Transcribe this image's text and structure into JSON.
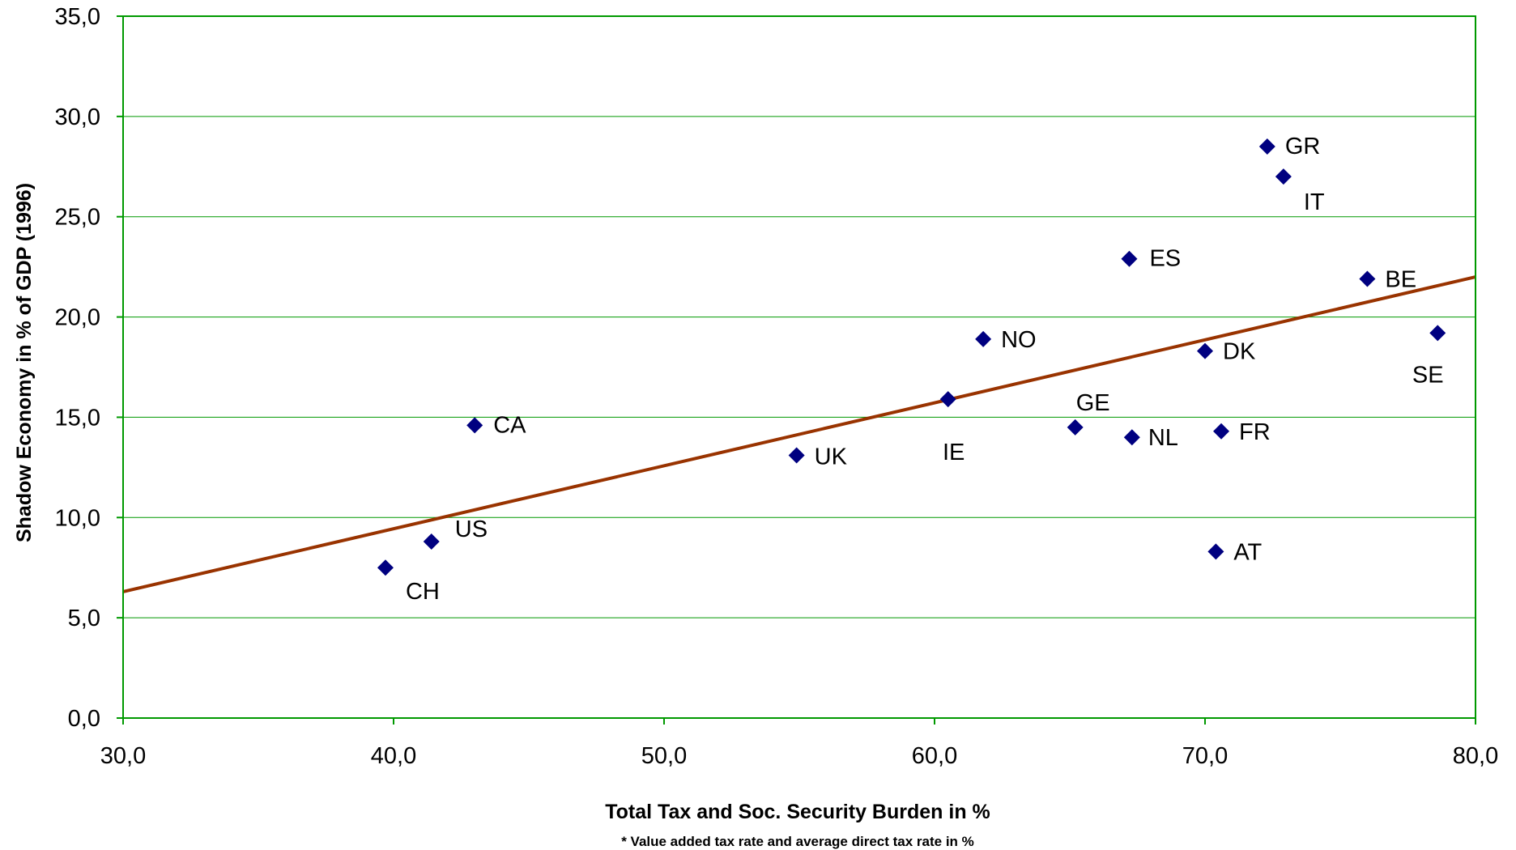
{
  "chart_data": {
    "type": "scatter",
    "title": "",
    "xlabel": "Total Tax and Soc. Security Burden in %",
    "ylabel": "Shadow Economy in % of GDP (1996)",
    "footnote": "* Value added tax rate and average direct tax rate in %",
    "xlim": [
      30,
      80
    ],
    "ylim": [
      0,
      35
    ],
    "x_ticks": [
      30,
      40,
      50,
      60,
      70,
      80
    ],
    "y_ticks": [
      0,
      5,
      10,
      15,
      20,
      25,
      30,
      35
    ],
    "x_tick_labels": [
      "30,0",
      "40,0",
      "50,0",
      "60,0",
      "70,0",
      "80,0"
    ],
    "y_tick_labels": [
      "0,0",
      "5,0",
      "10,0",
      "15,0",
      "20,0",
      "25,0",
      "30,0",
      "35,0"
    ],
    "grid": "horizontal",
    "points": [
      {
        "label": "CH",
        "x": 39.7,
        "y": 7.5
      },
      {
        "label": "US",
        "x": 41.4,
        "y": 8.8
      },
      {
        "label": "CA",
        "x": 43.0,
        "y": 14.6
      },
      {
        "label": "UK",
        "x": 54.9,
        "y": 13.1
      },
      {
        "label": "IE",
        "x": 60.5,
        "y": 15.9
      },
      {
        "label": "NO",
        "x": 61.8,
        "y": 18.9
      },
      {
        "label": "GE",
        "x": 65.2,
        "y": 14.5
      },
      {
        "label": "ES",
        "x": 67.2,
        "y": 22.9
      },
      {
        "label": "NL",
        "x": 67.3,
        "y": 14.0
      },
      {
        "label": "DK",
        "x": 70.0,
        "y": 18.3
      },
      {
        "label": "AT",
        "x": 70.4,
        "y": 8.3
      },
      {
        "label": "FR",
        "x": 70.6,
        "y": 14.3
      },
      {
        "label": "GR",
        "x": 72.3,
        "y": 28.5
      },
      {
        "label": "IT",
        "x": 72.9,
        "y": 27.0
      },
      {
        "label": "BE",
        "x": 76.0,
        "y": 21.9
      },
      {
        "label": "SE",
        "x": 78.6,
        "y": 19.2
      }
    ],
    "trendline": {
      "x": [
        30,
        80
      ],
      "y": [
        6.3,
        22.0
      ]
    },
    "colors": {
      "marker": "#000080",
      "trendline": "#993300",
      "grid": "#009900",
      "axis": "#009900"
    }
  }
}
